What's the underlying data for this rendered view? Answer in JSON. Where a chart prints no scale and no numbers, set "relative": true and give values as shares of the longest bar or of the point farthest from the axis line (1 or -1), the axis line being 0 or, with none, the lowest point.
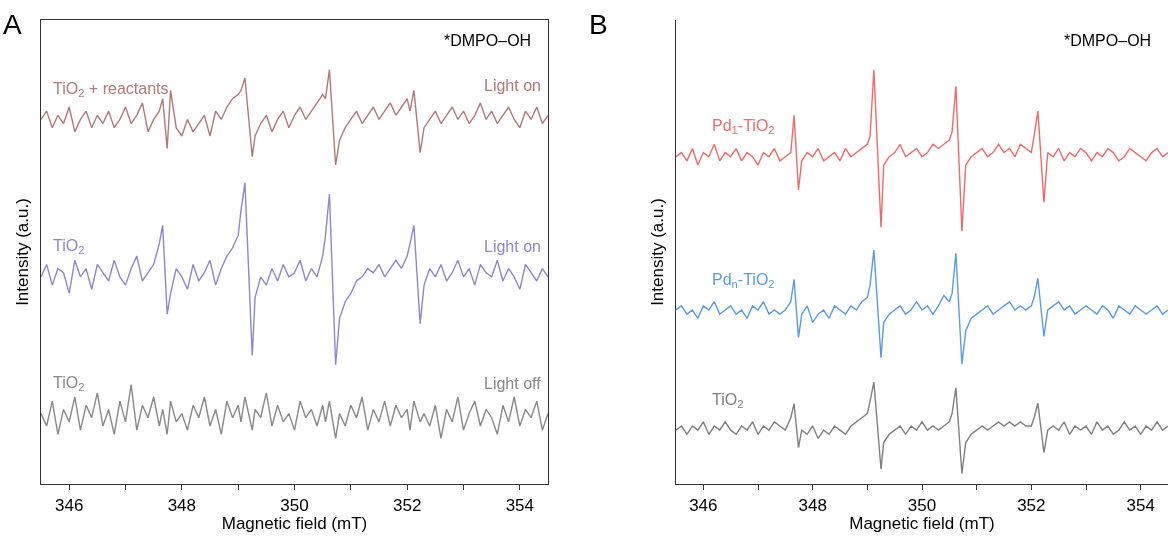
{
  "chart_data": [
    {
      "type": "line",
      "title": "A",
      "xlabel": "Magnetic field (mT)",
      "ylabel": "Intensity (a.u.)",
      "relative": true,
      "xlim": [
        345.5,
        354.5
      ],
      "xticks": [
        346,
        {
          "value": 347,
          "label": null
        },
        348,
        {
          "value": 349,
          "label": null
        },
        350,
        {
          "value": 351,
          "label": null
        },
        352,
        {
          "value": 353,
          "label": null
        },
        354
      ],
      "x": [
        345.5,
        345.6,
        345.7,
        345.8,
        345.9,
        346.0,
        346.1,
        346.2,
        346.3,
        346.4,
        346.5,
        346.6,
        346.7,
        346.8,
        346.9,
        347.0,
        347.1,
        347.2,
        347.3,
        347.4,
        347.5,
        347.6,
        347.66,
        347.74,
        347.8,
        347.9,
        348.0,
        348.1,
        348.2,
        348.3,
        348.4,
        348.5,
        348.6,
        348.7,
        348.8,
        348.9,
        349.0,
        349.05,
        349.12,
        349.25,
        349.3,
        349.4,
        349.5,
        349.6,
        349.7,
        349.8,
        349.9,
        350.0,
        350.1,
        350.2,
        350.3,
        350.4,
        350.5,
        350.55,
        350.62,
        350.73,
        350.8,
        350.9,
        351.0,
        351.1,
        351.2,
        351.3,
        351.4,
        351.5,
        351.6,
        351.7,
        351.8,
        351.9,
        352.0,
        352.05,
        352.12,
        352.23,
        352.3,
        352.4,
        352.5,
        352.6,
        352.7,
        352.8,
        352.9,
        353.0,
        353.1,
        353.2,
        353.3,
        353.4,
        353.5,
        353.6,
        353.7,
        353.8,
        353.9,
        354.0,
        354.1,
        354.2,
        354.3,
        354.4,
        354.5
      ],
      "series": [
        {
          "name": "TiO$_{2}$ + reactants",
          "color": "#b07a78",
          "values": [
            0.88,
            0.9,
            0.86,
            0.89,
            0.87,
            0.91,
            0.85,
            0.88,
            0.9,
            0.86,
            0.89,
            0.87,
            0.9,
            0.86,
            0.88,
            0.91,
            0.87,
            0.89,
            0.92,
            0.85,
            0.88,
            0.9,
            0.93,
            0.81,
            0.95,
            0.86,
            0.84,
            0.88,
            0.85,
            0.87,
            0.89,
            0.84,
            0.9,
            0.88,
            0.91,
            0.93,
            0.94,
            0.95,
            0.98,
            0.79,
            0.84,
            0.87,
            0.89,
            0.85,
            0.88,
            0.9,
            0.86,
            0.89,
            0.91,
            0.88,
            0.9,
            0.92,
            0.94,
            0.93,
            1.0,
            0.77,
            0.83,
            0.86,
            0.88,
            0.9,
            0.87,
            0.89,
            0.91,
            0.88,
            0.9,
            0.92,
            0.89,
            0.91,
            0.93,
            0.9,
            0.95,
            0.8,
            0.86,
            0.88,
            0.9,
            0.87,
            0.89,
            0.91,
            0.88,
            0.9,
            0.87,
            0.89,
            0.92,
            0.88,
            0.9,
            0.87,
            0.89,
            0.91,
            0.88,
            0.86,
            0.9,
            0.88,
            0.91,
            0.87,
            0.89
          ]
        },
        {
          "name": "TiO$_{2}$",
          "color": "#8c87cf",
          "values": [
            0.5,
            0.53,
            0.48,
            0.52,
            0.51,
            0.46,
            0.54,
            0.5,
            0.52,
            0.47,
            0.53,
            0.51,
            0.49,
            0.54,
            0.5,
            0.48,
            0.52,
            0.55,
            0.49,
            0.51,
            0.53,
            0.58,
            0.624,
            0.41,
            0.46,
            0.52,
            0.5,
            0.47,
            0.53,
            0.49,
            0.51,
            0.54,
            0.48,
            0.52,
            0.55,
            0.57,
            0.6,
            0.66,
            0.727,
            0.31,
            0.45,
            0.5,
            0.48,
            0.52,
            0.49,
            0.53,
            0.5,
            0.51,
            0.54,
            0.49,
            0.52,
            0.5,
            0.55,
            0.6,
            0.7,
            0.288,
            0.4,
            0.44,
            0.46,
            0.49,
            0.5,
            0.52,
            0.51,
            0.53,
            0.5,
            0.52,
            0.54,
            0.52,
            0.55,
            0.58,
            0.624,
            0.387,
            0.48,
            0.52,
            0.5,
            0.53,
            0.49,
            0.51,
            0.54,
            0.5,
            0.52,
            0.48,
            0.53,
            0.51,
            0.5,
            0.54,
            0.49,
            0.52,
            0.5,
            0.47,
            0.53,
            0.51,
            0.49,
            0.52,
            0.5
          ]
        },
        {
          "name": "TiO$_{2}$",
          "color": "#888888",
          "values": [
            0.17,
            0.14,
            0.2,
            0.12,
            0.18,
            0.15,
            0.21,
            0.13,
            0.19,
            0.16,
            0.22,
            0.14,
            0.18,
            0.12,
            0.2,
            0.15,
            0.24,
            0.13,
            0.19,
            0.16,
            0.21,
            0.14,
            0.18,
            0.12,
            0.2,
            0.15,
            0.17,
            0.13,
            0.19,
            0.16,
            0.21,
            0.14,
            0.18,
            0.12,
            0.2,
            0.16,
            0.19,
            0.15,
            0.21,
            0.13,
            0.18,
            0.16,
            0.22,
            0.14,
            0.19,
            0.15,
            0.17,
            0.13,
            0.2,
            0.16,
            0.18,
            0.14,
            0.19,
            0.15,
            0.2,
            0.11,
            0.17,
            0.14,
            0.19,
            0.16,
            0.21,
            0.13,
            0.18,
            0.15,
            0.2,
            0.14,
            0.19,
            0.16,
            0.18,
            0.13,
            0.2,
            0.15,
            0.17,
            0.14,
            0.19,
            0.11,
            0.18,
            0.15,
            0.21,
            0.13,
            0.17,
            0.2,
            0.14,
            0.18,
            0.16,
            0.12,
            0.19,
            0.15,
            0.21,
            0.14,
            0.18,
            0.16,
            0.2,
            0.13,
            0.17
          ]
        }
      ],
      "annotations": [
        "*DMPO–OH",
        "Light on",
        "Light on",
        "Light off"
      ]
    },
    {
      "type": "line",
      "title": "B",
      "xlabel": "Magnetic field (mT)",
      "ylabel": "Intensity (a.u.)",
      "relative": true,
      "xlim": [
        345.5,
        354.5
      ],
      "xticks": [
        346,
        {
          "value": 347,
          "label": null
        },
        348,
        {
          "value": 349,
          "label": null
        },
        350,
        {
          "value": 351,
          "label": null
        },
        352,
        {
          "value": 353,
          "label": null
        },
        354
      ],
      "x": [
        345.5,
        345.6,
        345.7,
        345.8,
        345.9,
        346.0,
        346.1,
        346.2,
        346.3,
        346.4,
        346.5,
        346.6,
        346.7,
        346.8,
        346.9,
        347.0,
        347.1,
        347.2,
        347.3,
        347.4,
        347.5,
        347.6,
        347.66,
        347.74,
        347.8,
        347.9,
        348.0,
        348.1,
        348.2,
        348.3,
        348.4,
        348.5,
        348.6,
        348.7,
        348.8,
        348.9,
        349.0,
        349.05,
        349.12,
        349.25,
        349.3,
        349.4,
        349.5,
        349.6,
        349.7,
        349.8,
        349.9,
        350.0,
        350.1,
        350.2,
        350.3,
        350.4,
        350.5,
        350.55,
        350.62,
        350.73,
        350.8,
        350.9,
        351.0,
        351.1,
        351.2,
        351.3,
        351.4,
        351.5,
        351.6,
        351.7,
        351.8,
        351.9,
        352.0,
        352.05,
        352.12,
        352.23,
        352.3,
        352.4,
        352.5,
        352.6,
        352.7,
        352.8,
        352.9,
        353.0,
        353.1,
        353.2,
        353.3,
        353.4,
        353.5,
        353.6,
        353.7,
        353.8,
        353.9,
        354.0,
        354.1,
        354.2,
        354.3,
        354.4,
        354.5
      ],
      "series": [
        {
          "name": "Pd$_{1}$-TiO$_{2}$",
          "color": "#f06a6a",
          "values": [
            0.79,
            0.8,
            0.78,
            0.81,
            0.77,
            0.8,
            0.79,
            0.82,
            0.78,
            0.8,
            0.79,
            0.81,
            0.78,
            0.8,
            0.79,
            0.77,
            0.8,
            0.79,
            0.81,
            0.78,
            0.79,
            0.8,
            0.89,
            0.71,
            0.78,
            0.8,
            0.79,
            0.81,
            0.78,
            0.79,
            0.8,
            0.78,
            0.81,
            0.79,
            0.8,
            0.81,
            0.82,
            0.84,
            1.0,
            0.62,
            0.77,
            0.79,
            0.8,
            0.82,
            0.79,
            0.8,
            0.81,
            0.79,
            0.8,
            0.82,
            0.81,
            0.82,
            0.83,
            0.85,
            0.96,
            0.61,
            0.77,
            0.79,
            0.8,
            0.81,
            0.79,
            0.8,
            0.82,
            0.8,
            0.81,
            0.79,
            0.82,
            0.81,
            0.8,
            0.84,
            0.9,
            0.68,
            0.8,
            0.79,
            0.81,
            0.78,
            0.8,
            0.79,
            0.81,
            0.8,
            0.78,
            0.8,
            0.79,
            0.81,
            0.8,
            0.78,
            0.79,
            0.81,
            0.8,
            0.79,
            0.78,
            0.8,
            0.81,
            0.79,
            0.8
          ]
        },
        {
          "name": "Pd$_{n}$-TiO$_{2}$",
          "color": "#5b9be6",
          "values": [
            0.42,
            0.43,
            0.41,
            0.42,
            0.4,
            0.43,
            0.42,
            0.44,
            0.41,
            0.42,
            0.43,
            0.41,
            0.42,
            0.4,
            0.43,
            0.42,
            0.44,
            0.41,
            0.42,
            0.41,
            0.42,
            0.44,
            0.494,
            0.354,
            0.41,
            0.43,
            0.39,
            0.41,
            0.42,
            0.4,
            0.43,
            0.42,
            0.41,
            0.43,
            0.42,
            0.44,
            0.45,
            0.48,
            0.565,
            0.305,
            0.39,
            0.41,
            0.42,
            0.43,
            0.41,
            0.42,
            0.44,
            0.42,
            0.43,
            0.41,
            0.43,
            0.455,
            0.44,
            0.46,
            0.557,
            0.289,
            0.37,
            0.4,
            0.41,
            0.42,
            0.43,
            0.41,
            0.42,
            0.43,
            0.44,
            0.42,
            0.43,
            0.42,
            0.43,
            0.45,
            0.496,
            0.356,
            0.42,
            0.43,
            0.44,
            0.42,
            0.43,
            0.41,
            0.42,
            0.43,
            0.42,
            0.41,
            0.43,
            0.42,
            0.4,
            0.43,
            0.42,
            0.41,
            0.43,
            0.42,
            0.41,
            0.42,
            0.43,
            0.41,
            0.42
          ]
        },
        {
          "name": "TiO$_{2}$",
          "color": "#808080",
          "values": [
            0.13,
            0.14,
            0.12,
            0.14,
            0.13,
            0.15,
            0.12,
            0.14,
            0.13,
            0.15,
            0.13,
            0.12,
            0.14,
            0.13,
            0.15,
            0.12,
            0.14,
            0.13,
            0.15,
            0.14,
            0.13,
            0.16,
            0.194,
            0.088,
            0.13,
            0.12,
            0.14,
            0.11,
            0.13,
            0.12,
            0.14,
            0.13,
            0.12,
            0.14,
            0.15,
            0.16,
            0.17,
            0.2,
            0.246,
            0.036,
            0.1,
            0.12,
            0.13,
            0.14,
            0.12,
            0.14,
            0.13,
            0.15,
            0.13,
            0.14,
            0.13,
            0.14,
            0.15,
            0.17,
            0.232,
            0.025,
            0.1,
            0.12,
            0.13,
            0.14,
            0.13,
            0.14,
            0.15,
            0.14,
            0.15,
            0.14,
            0.15,
            0.14,
            0.14,
            0.16,
            0.195,
            0.076,
            0.13,
            0.14,
            0.13,
            0.15,
            0.12,
            0.14,
            0.13,
            0.14,
            0.12,
            0.15,
            0.13,
            0.14,
            0.12,
            0.13,
            0.15,
            0.13,
            0.14,
            0.12,
            0.14,
            0.13,
            0.15,
            0.13,
            0.14
          ]
        }
      ],
      "annotations": [
        "*DMPO–OH"
      ]
    }
  ]
}
